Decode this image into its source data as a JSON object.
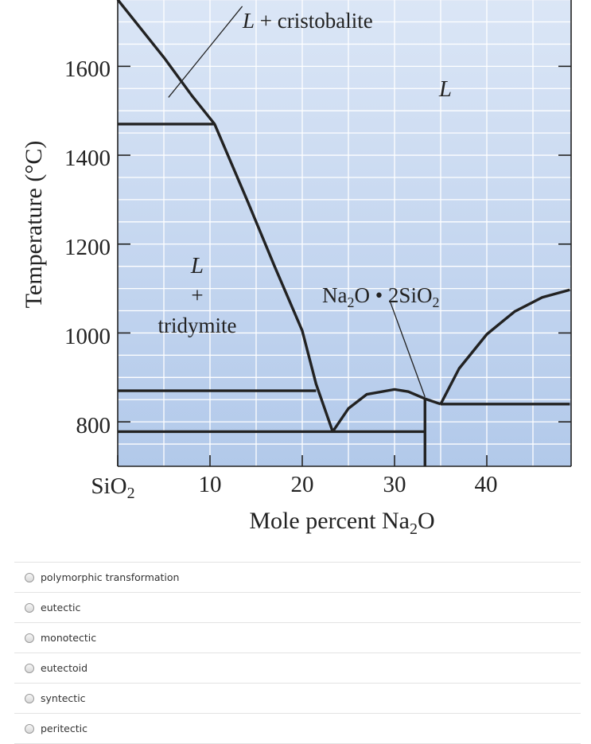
{
  "figure": {
    "ylabel": "Temperature (°C)",
    "xlabel": "Mole percent Na",
    "xlabel_sub": "2",
    "xlabel_tail": "O",
    "x_first_tick": {
      "base": "SiO",
      "sub": "2"
    },
    "regions": {
      "l_cristobalite_l": "L",
      "l_cristobalite_rest": " + cristobalite",
      "liquid": "L",
      "l_tridymite_l": "L",
      "l_tridymite_plus": "+",
      "l_tridymite_name": "tridymite",
      "compound": {
        "a": "Na",
        "s1": "2",
        "b": "O • 2SiO",
        "s2": "2"
      }
    }
  },
  "chart_data": {
    "type": "phase-diagram",
    "xlabel": "Mole percent Na2O",
    "ylabel": "Temperature (°C)",
    "xlim": [
      0,
      49
    ],
    "ylim": [
      700,
      1750
    ],
    "xticks": [
      0,
      10,
      20,
      30,
      40
    ],
    "xtick_labels": [
      "SiO2",
      "10",
      "20",
      "30",
      "40"
    ],
    "yticks": [
      800,
      1000,
      1200,
      1400,
      1600
    ],
    "ytick_labels": [
      "800",
      "1000",
      "1200",
      "1400",
      "1600"
    ],
    "grid": true,
    "liquidus": [
      {
        "name": "silica-liquidus",
        "points": [
          [
            0,
            1750
          ],
          [
            5,
            1620
          ],
          [
            8,
            1535
          ],
          [
            10.5,
            1470
          ],
          [
            14,
            1300
          ],
          [
            17,
            1150
          ],
          [
            20,
            1005
          ],
          [
            21.5,
            885
          ],
          [
            23.3,
            778
          ]
        ]
      },
      {
        "name": "compound-dome",
        "points": [
          [
            23.3,
            778
          ],
          [
            25,
            830
          ],
          [
            27,
            862
          ],
          [
            30,
            873
          ],
          [
            31.5,
            868
          ],
          [
            33.3,
            852
          ],
          [
            35,
            840
          ]
        ]
      },
      {
        "name": "na2o-rich-liquidus",
        "points": [
          [
            35,
            840
          ],
          [
            37,
            920
          ],
          [
            40,
            997
          ],
          [
            43,
            1048
          ],
          [
            46,
            1080
          ],
          [
            49,
            1097
          ]
        ]
      }
    ],
    "horizontals": [
      {
        "name": "cristobalite-tridymite",
        "T": 1470,
        "x": [
          0,
          10.5
        ]
      },
      {
        "name": "tridymite-quartz",
        "T": 870,
        "x": [
          0,
          21.5
        ]
      },
      {
        "name": "eutectic-1",
        "T": 778,
        "x": [
          0,
          33.3
        ]
      },
      {
        "name": "eutectic-2",
        "T": 840,
        "x": [
          35,
          49
        ]
      }
    ],
    "compound_line": {
      "x": 33.3,
      "T": [
        700,
        852
      ]
    },
    "leaders": [
      {
        "name": "leader-cristobalite",
        "from": [
          5.5,
          1530
        ],
        "to": [
          13.5,
          1735
        ]
      },
      {
        "name": "leader-compound",
        "from": [
          29.5,
          1072
        ],
        "to": [
          33.3,
          856
        ]
      }
    ]
  },
  "question": {
    "options": [
      "polymorphic transformation",
      "eutectic",
      "monotectic",
      "eutectoid",
      "syntectic",
      "peritectic"
    ]
  }
}
